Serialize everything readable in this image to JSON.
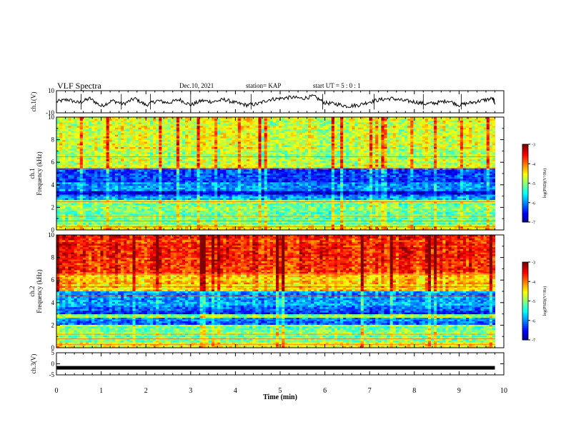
{
  "header": {
    "title": "VLF Spectra",
    "date": "Dec.10, 2021",
    "station": "station= KAP",
    "start": "start  UT =   5 : 0  : 1"
  },
  "chart_data": [
    {
      "type": "line",
      "panel": "ch1-voltage",
      "ylabel": "ch.1(V)",
      "yticks": [
        "10",
        "-10"
      ],
      "ylim": [
        -10,
        10
      ],
      "xlim": [
        0,
        10
      ],
      "x": [
        0.0,
        0.25,
        0.5,
        0.75,
        1.0,
        1.25,
        1.5,
        1.75,
        2.0,
        2.25,
        2.5,
        2.75,
        3.0,
        3.25,
        3.5,
        3.75,
        4.0,
        4.25,
        4.5,
        4.75,
        5.0,
        5.25,
        5.5,
        5.75,
        6.0,
        6.25,
        6.5,
        6.75,
        7.0,
        7.25,
        7.5,
        7.75,
        8.0,
        8.25,
        8.5,
        8.75,
        9.0,
        9.25,
        9.5,
        9.75,
        9.8
      ],
      "y": [
        0,
        2,
        -1,
        3,
        -4,
        1,
        -2,
        3,
        -3,
        1,
        -1,
        2,
        -3,
        1,
        0,
        2,
        -1,
        -3,
        -2,
        2,
        3,
        4,
        3,
        5,
        -1,
        -2,
        -4,
        -3,
        0,
        2,
        3,
        1,
        0,
        -2,
        -1,
        1,
        -3,
        -1,
        1,
        3,
        -1
      ]
    },
    {
      "type": "heatmap",
      "panel": "ch1-spectrogram",
      "ylabel": "ch.1\nFrequency (kHz)",
      "yticks": [
        "0",
        "2",
        "4",
        "6",
        "8",
        "10"
      ],
      "ylim": [
        0,
        10
      ],
      "xlim": [
        0,
        10
      ],
      "colorbar": {
        "label": "log(PSD)(V²/Hz)",
        "ticks": [
          "-3",
          "-4",
          "-5",
          "-6",
          "-7"
        ],
        "range": [
          -7,
          -3
        ]
      },
      "bands_khz": [
        {
          "from": 0.0,
          "to": 0.5,
          "level": -4.5
        },
        {
          "from": 0.5,
          "to": 1.5,
          "level": -5.0
        },
        {
          "from": 1.5,
          "to": 2.6,
          "level": -5.0
        },
        {
          "from": 2.6,
          "to": 3.2,
          "level": -6.0
        },
        {
          "from": 3.2,
          "to": 3.5,
          "level": -6.5
        },
        {
          "from": 3.5,
          "to": 4.2,
          "level": -5.9
        },
        {
          "from": 4.2,
          "to": 5.5,
          "level": -6.2
        },
        {
          "from": 5.5,
          "to": 10.0,
          "level": -4.7
        }
      ]
    },
    {
      "type": "heatmap",
      "panel": "ch2-spectrogram",
      "ylabel": "ch.2\nFrequency (kHz)",
      "yticks": [
        "0",
        "2",
        "4",
        "6",
        "8",
        "10"
      ],
      "ylim": [
        0,
        10
      ],
      "xlim": [
        0,
        10
      ],
      "colorbar": {
        "label": "log(PSD)(V²/Hz)",
        "ticks": [
          "-3",
          "-4",
          "-5",
          "-6",
          "-7"
        ],
        "range": [
          -7,
          -3
        ]
      },
      "bands_khz": [
        {
          "from": 0.0,
          "to": 0.5,
          "level": -4.5
        },
        {
          "from": 0.5,
          "to": 2.0,
          "level": -5.0
        },
        {
          "from": 2.0,
          "to": 2.6,
          "level": -6.0
        },
        {
          "from": 2.6,
          "to": 3.0,
          "level": -5.0
        },
        {
          "from": 3.0,
          "to": 3.6,
          "level": -6.2
        },
        {
          "from": 3.6,
          "to": 5.0,
          "level": -5.9
        },
        {
          "from": 5.0,
          "to": 6.5,
          "level": -4.3
        },
        {
          "from": 6.5,
          "to": 10.0,
          "level": -3.6
        }
      ]
    },
    {
      "type": "line",
      "panel": "ch3-voltage",
      "ylabel": "ch.3(V)",
      "yticks": [
        "5",
        "0",
        "-5"
      ],
      "ylim": [
        -5,
        5
      ],
      "xlim": [
        0,
        10
      ],
      "x": [
        0,
        9.8
      ],
      "y": [
        -1.8,
        -1.8
      ]
    }
  ],
  "x_axis": {
    "label": "Time (min)",
    "ticks": [
      "0",
      "1",
      "2",
      "3",
      "4",
      "5",
      "6",
      "7",
      "8",
      "9",
      "10"
    ]
  }
}
